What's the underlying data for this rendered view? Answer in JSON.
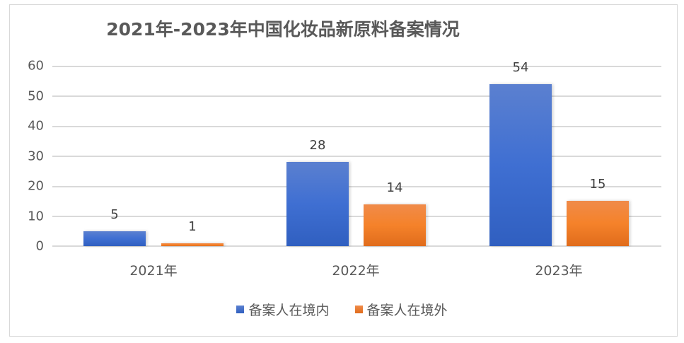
{
  "chart_data": {
    "type": "bar",
    "title": "2021年-2023年中国化妆品新原料备案情况",
    "categories": [
      "2021年",
      "2022年",
      "2023年"
    ],
    "series": [
      {
        "name": "备案人在境内",
        "values": [
          5,
          28,
          54
        ],
        "color": "#4472C4"
      },
      {
        "name": "备案人在境外",
        "values": [
          1,
          14,
          15
        ],
        "color": "#ED7D31"
      }
    ],
    "xlabel": "",
    "ylabel": "",
    "ylim": [
      0,
      60
    ],
    "yticks": [
      0,
      10,
      20,
      30,
      40,
      50,
      60
    ],
    "grid": true,
    "legend_position": "bottom",
    "data_labels": true
  },
  "labels": {
    "title": "2021年-2023年中国化妆品新原料备案情况",
    "yticks": [
      "0",
      "10",
      "20",
      "30",
      "40",
      "50",
      "60"
    ],
    "categories": [
      "2021年",
      "2022年",
      "2023年"
    ],
    "legend": [
      "备案人在境内",
      "备案人在境外"
    ],
    "values": {
      "s0": [
        "5",
        "28",
        "54"
      ],
      "s1": [
        "1",
        "14",
        "15"
      ]
    }
  }
}
